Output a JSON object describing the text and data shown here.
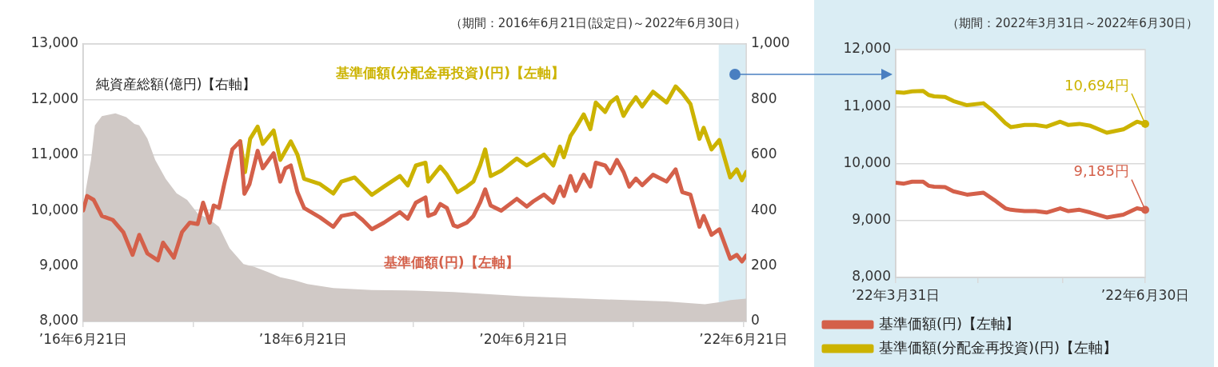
{
  "chart_data": [
    {
      "type": "line",
      "subtitle": "（期間：2016年6月21日(設定日)～2022年6月30日）",
      "xlim": [
        "2016-06-21",
        "2022-06-30"
      ],
      "xticks": [
        {
          "value": "2016-06-21",
          "label": "’16年6月21日"
        },
        {
          "value": "2017-06-21",
          "label": null
        },
        {
          "value": "2018-06-21",
          "label": "’18年6月21日"
        },
        {
          "value": "2019-06-21",
          "label": null
        },
        {
          "value": "2020-06-21",
          "label": "’20年6月21日"
        },
        {
          "value": "2021-06-21",
          "label": null
        },
        {
          "value": "2022-06-21",
          "label": "’22年6月21日"
        }
      ],
      "ylim": [
        8000,
        13000
      ],
      "yticks": [
        {
          "value": 8000,
          "label": "8,000"
        },
        {
          "value": 9000,
          "label": "9,000"
        },
        {
          "value": 10000,
          "label": "10,000"
        },
        {
          "value": 11000,
          "label": "11,000"
        },
        {
          "value": 12000,
          "label": "12,000"
        },
        {
          "value": 13000,
          "label": "13,000"
        }
      ],
      "y2lim": [
        0,
        1000
      ],
      "y2ticks": [
        0,
        200,
        400,
        600,
        800,
        {
          "value": 1000,
          "label": "1,000"
        }
      ],
      "grid": "y",
      "bands": [
        {
          "axis": "x",
          "from": "2022-03-31",
          "to": "2022-06-30",
          "color": "#daedf4"
        }
      ],
      "series": [
        {
          "name": "基準価額(円)【左軸】",
          "color": "#d4604a",
          "x": [
            "2016-06-21",
            "2016-07-04",
            "2016-07-26",
            "2016-08-22",
            "2016-09-27",
            "2016-11-01",
            "2016-12-02",
            "2016-12-24",
            "2017-01-20",
            "2017-02-24",
            "2017-03-13",
            "2017-04-18",
            "2017-05-15",
            "2017-06-10",
            "2017-07-06",
            "2017-07-24",
            "2017-08-15",
            "2017-08-28",
            "2017-09-15",
            "2017-10-02",
            "2017-10-29",
            "2017-11-24",
            "2017-12-08",
            "2017-12-25",
            "2018-01-21",
            "2018-02-07",
            "2018-03-15",
            "2018-04-06",
            "2018-04-23",
            "2018-05-11",
            "2018-06-02",
            "2018-06-24",
            "2018-08-16",
            "2018-09-29",
            "2018-10-26",
            "2018-12-09",
            "2019-01-04",
            "2019-02-04",
            "2019-03-16",
            "2019-05-08",
            "2019-06-03",
            "2019-06-30",
            "2019-08-01",
            "2019-08-10",
            "2019-09-01",
            "2019-09-19",
            "2019-10-11",
            "2019-11-02",
            "2019-11-15",
            "2019-12-16",
            "2020-01-07",
            "2020-01-29",
            "2020-02-15",
            "2020-03-04",
            "2020-04-08",
            "2020-05-30",
            "2020-07-02",
            "2020-07-24",
            "2020-08-28",
            "2020-09-28",
            "2020-10-20",
            "2020-11-02",
            "2020-11-24",
            "2020-12-12",
            "2021-01-07",
            "2021-01-29",
            "2021-02-16",
            "2021-03-19",
            "2021-04-05",
            "2021-04-27",
            "2021-05-19",
            "2021-06-07",
            "2021-06-29",
            "2021-07-20",
            "2021-08-25",
            "2021-10-09",
            "2021-11-08",
            "2021-11-30",
            "2021-12-27",
            "2022-01-26",
            "2022-02-09",
            "2022-03-07",
            "2022-04-02",
            "2022-05-08",
            "2022-05-30",
            "2022-06-16",
            "2022-06-30"
          ],
          "values": [
            10000,
            10260,
            10190,
            9900,
            9830,
            9610,
            9200,
            9560,
            9225,
            9100,
            9420,
            9150,
            9610,
            9780,
            9755,
            10140,
            9780,
            10090,
            10045,
            10475,
            11100,
            11245,
            10300,
            10475,
            11075,
            10760,
            11030,
            10520,
            10760,
            10810,
            10330,
            10045,
            9875,
            9705,
            9900,
            9947,
            9830,
            9660,
            9780,
            9970,
            9850,
            10140,
            10235,
            9900,
            9947,
            10115,
            10045,
            9730,
            9705,
            9780,
            9900,
            10140,
            10380,
            10090,
            9995,
            10210,
            10070,
            10165,
            10285,
            10140,
            10430,
            10260,
            10620,
            10355,
            10645,
            10430,
            10860,
            10810,
            10670,
            10910,
            10695,
            10430,
            10575,
            10455,
            10645,
            10520,
            10740,
            10330,
            10285,
            9705,
            9900,
            9560,
            9660,
            9130,
            9200,
            9080,
            9185
          ]
        },
        {
          "name": "基準価額(分配金再投資)(円)【左軸】",
          "color": "#ccb300",
          "x": [
            "2017-11-24",
            "2017-12-10",
            "2017-12-27",
            "2018-01-21",
            "2018-02-07",
            "2018-03-15",
            "2018-04-06",
            "2018-05-11",
            "2018-06-02",
            "2018-06-24",
            "2018-08-16",
            "2018-09-29",
            "2018-10-26",
            "2018-12-09",
            "2019-02-04",
            "2019-03-16",
            "2019-05-08",
            "2019-06-03",
            "2019-06-30",
            "2019-08-01",
            "2019-08-10",
            "2019-09-19",
            "2019-10-11",
            "2019-11-02",
            "2019-11-15",
            "2019-12-16",
            "2020-01-07",
            "2020-01-29",
            "2020-02-15",
            "2020-03-04",
            "2020-04-08",
            "2020-05-30",
            "2020-07-02",
            "2020-07-24",
            "2020-08-28",
            "2020-09-28",
            "2020-10-20",
            "2020-11-02",
            "2020-11-24",
            "2020-12-12",
            "2021-01-07",
            "2021-01-29",
            "2021-02-16",
            "2021-03-19",
            "2021-04-05",
            "2021-04-27",
            "2021-05-19",
            "2021-06-07",
            "2021-06-29",
            "2021-07-20",
            "2021-08-25",
            "2021-10-09",
            "2021-11-08",
            "2021-11-30",
            "2021-12-27",
            "2022-01-26",
            "2022-02-09",
            "2022-03-07",
            "2022-04-02",
            "2022-05-08",
            "2022-05-30",
            "2022-06-16",
            "2022-06-30"
          ],
          "values": [
            11250,
            10690,
            11290,
            11510,
            11200,
            11440,
            10910,
            11245,
            11005,
            10570,
            10475,
            10305,
            10520,
            10595,
            10280,
            10430,
            10620,
            10450,
            10810,
            10860,
            10520,
            10790,
            10645,
            10450,
            10330,
            10430,
            10520,
            10810,
            11100,
            10620,
            10715,
            10935,
            10810,
            10885,
            11005,
            10810,
            11150,
            10960,
            11340,
            11490,
            11730,
            11465,
            11945,
            11775,
            11945,
            12040,
            11705,
            11875,
            12040,
            11875,
            12140,
            11945,
            12235,
            12115,
            11920,
            11290,
            11490,
            11100,
            11270,
            10595,
            10740,
            10545,
            10694
          ]
        },
        {
          "name": "純資産総額(億円)【右軸】",
          "type": "area",
          "axis": "y2",
          "color": "#d0c9c6",
          "x": [
            "2016-06-21",
            "2016-06-30",
            "2016-07-17",
            "2016-07-30",
            "2016-08-22",
            "2016-10-06",
            "2016-11-11",
            "2016-12-08",
            "2016-12-24",
            "2017-01-20",
            "2017-02-15",
            "2017-03-22",
            "2017-04-27",
            "2017-06-01",
            "2017-07-06",
            "2017-08-11",
            "2017-09-15",
            "2017-10-20",
            "2017-12-05",
            "2018-01-10",
            "2018-02-24",
            "2018-04-06",
            "2018-05-21",
            "2018-07-05",
            "2018-09-29",
            "2019-02-04",
            "2019-06-30",
            "2019-11-02",
            "2020-06-18",
            "2021-01-11",
            "2021-10-09",
            "2022-02-13",
            "2022-04-06",
            "2022-05-10",
            "2022-06-30"
          ],
          "values": [
            380,
            476,
            582,
            707,
            740,
            750,
            736,
            712,
            707,
            659,
            582,
            514,
            462,
            438,
            389,
            370,
            341,
            264,
            207,
            197,
            178,
            159,
            149,
            135,
            120,
            113,
            111,
            106,
            91,
            82,
            72,
            62,
            70,
            77,
            82
          ]
        }
      ]
    },
    {
      "type": "line",
      "subtitle": "（期間：2022年3月31日～2022年6月30日）",
      "xlim": [
        "2022-03-31",
        "2022-06-30"
      ],
      "xticks": [
        {
          "value": "2022-03-31",
          "label": "’22年3月31日"
        },
        {
          "value": "2022-04-30",
          "label": null
        },
        {
          "value": "2022-05-31",
          "label": null
        },
        {
          "value": "2022-06-30",
          "label": "’22年6月30日"
        }
      ],
      "ylim": [
        8000,
        12000
      ],
      "yticks": [
        {
          "value": 8000,
          "label": "8,000"
        },
        {
          "value": 9000,
          "label": "9,000"
        },
        {
          "value": 10000,
          "label": "10,000"
        },
        {
          "value": 11000,
          "label": "11,000"
        },
        {
          "value": 12000,
          "label": "12,000"
        }
      ],
      "grid": "y",
      "legend": "bottom",
      "x": [
        "2022-03-31",
        "2022-04-03",
        "2022-04-06",
        "2022-04-10",
        "2022-04-12",
        "2022-04-14",
        "2022-04-18",
        "2022-04-21",
        "2022-04-26",
        "2022-05-02",
        "2022-05-06",
        "2022-05-10",
        "2022-05-12",
        "2022-05-17",
        "2022-05-21",
        "2022-05-25",
        "2022-05-30",
        "2022-06-02",
        "2022-06-06",
        "2022-06-10",
        "2022-06-16",
        "2022-06-22",
        "2022-06-27",
        "2022-06-30"
      ],
      "series": [
        {
          "name": "基準価額(円)【左軸】",
          "color": "#d4604a",
          "values": [
            9662,
            9647,
            9681,
            9681,
            9609,
            9594,
            9585,
            9512,
            9454,
            9488,
            9357,
            9213,
            9188,
            9164,
            9164,
            9140,
            9213,
            9164,
            9188,
            9140,
            9053,
            9101,
            9213,
            9185
          ]
        },
        {
          "name": "基準価額(分配金再投資)(円)【左軸】",
          "color": "#ccb300",
          "values": [
            11251,
            11242,
            11266,
            11275,
            11203,
            11179,
            11169,
            11097,
            11024,
            11058,
            10903,
            10710,
            10638,
            10676,
            10676,
            10647,
            10734,
            10676,
            10696,
            10662,
            10541,
            10599,
            10734,
            10694
          ]
        }
      ],
      "annotations": [
        {
          "text": "10,694円",
          "x": "2022-06-30",
          "y": 10694
        },
        {
          "text": "9,185円",
          "x": "2022-06-30",
          "y": 9185
        }
      ]
    }
  ]
}
